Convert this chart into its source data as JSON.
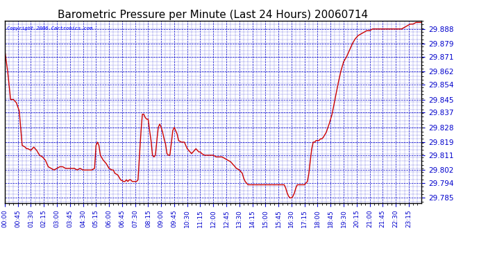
{
  "title": "Barometric Pressure per Minute (Last 24 Hours) 20060714",
  "copyright": "Copyright 2006 Cartronics.com",
  "line_color": "#cc0000",
  "bg_color": "#ffffff",
  "plot_bg_color": "#ffffff",
  "grid_color": "#0000cc",
  "text_color": "#0000cc",
  "yticks": [
    29.785,
    29.794,
    29.802,
    29.811,
    29.819,
    29.828,
    29.837,
    29.845,
    29.854,
    29.862,
    29.871,
    29.879,
    29.888
  ],
  "ylim": [
    29.782,
    29.893
  ],
  "xtick_labels": [
    "00:00",
    "00:45",
    "01:30",
    "02:15",
    "03:00",
    "03:45",
    "04:30",
    "05:15",
    "06:00",
    "06:45",
    "07:30",
    "08:15",
    "09:00",
    "09:45",
    "10:30",
    "11:15",
    "12:00",
    "12:45",
    "13:30",
    "14:15",
    "15:00",
    "15:45",
    "16:30",
    "17:15",
    "18:00",
    "18:45",
    "19:30",
    "20:15",
    "21:00",
    "21:45",
    "22:30",
    "23:15"
  ],
  "title_fontsize": 11,
  "label_fontsize": 6.5,
  "ylabel_fontsize": 7.5,
  "keypoints": [
    [
      0,
      29.875
    ],
    [
      10,
      29.862
    ],
    [
      20,
      29.845
    ],
    [
      30,
      29.845
    ],
    [
      40,
      29.843
    ],
    [
      50,
      29.838
    ],
    [
      60,
      29.817
    ],
    [
      70,
      29.816
    ],
    [
      75,
      29.815
    ],
    [
      80,
      29.815
    ],
    [
      90,
      29.814
    ],
    [
      100,
      29.816
    ],
    [
      110,
      29.814
    ],
    [
      120,
      29.811
    ],
    [
      130,
      29.81
    ],
    [
      140,
      29.808
    ],
    [
      150,
      29.804
    ],
    [
      160,
      29.803
    ],
    [
      170,
      29.802
    ],
    [
      180,
      29.803
    ],
    [
      190,
      29.804
    ],
    [
      200,
      29.804
    ],
    [
      210,
      29.803
    ],
    [
      220,
      29.803
    ],
    [
      230,
      29.803
    ],
    [
      240,
      29.803
    ],
    [
      250,
      29.802
    ],
    [
      260,
      29.803
    ],
    [
      270,
      29.802
    ],
    [
      280,
      29.802
    ],
    [
      290,
      29.802
    ],
    [
      300,
      29.802
    ],
    [
      310,
      29.803
    ],
    [
      315,
      29.817
    ],
    [
      320,
      29.819
    ],
    [
      325,
      29.817
    ],
    [
      330,
      29.811
    ],
    [
      340,
      29.808
    ],
    [
      350,
      29.806
    ],
    [
      360,
      29.803
    ],
    [
      370,
      29.802
    ],
    [
      375,
      29.802
    ],
    [
      380,
      29.8
    ],
    [
      390,
      29.799
    ],
    [
      400,
      29.796
    ],
    [
      410,
      29.795
    ],
    [
      415,
      29.795
    ],
    [
      420,
      29.796
    ],
    [
      425,
      29.795
    ],
    [
      430,
      29.796
    ],
    [
      435,
      29.796
    ],
    [
      440,
      29.795
    ],
    [
      445,
      29.795
    ],
    [
      450,
      29.795
    ],
    [
      455,
      29.795
    ],
    [
      460,
      29.796
    ],
    [
      465,
      29.81
    ],
    [
      470,
      29.825
    ],
    [
      475,
      29.836
    ],
    [
      480,
      29.836
    ],
    [
      485,
      29.834
    ],
    [
      490,
      29.833
    ],
    [
      495,
      29.833
    ],
    [
      500,
      29.826
    ],
    [
      505,
      29.82
    ],
    [
      510,
      29.811
    ],
    [
      515,
      29.81
    ],
    [
      520,
      29.811
    ],
    [
      525,
      29.82
    ],
    [
      530,
      29.828
    ],
    [
      535,
      29.83
    ],
    [
      540,
      29.828
    ],
    [
      545,
      29.825
    ],
    [
      550,
      29.821
    ],
    [
      555,
      29.818
    ],
    [
      560,
      29.812
    ],
    [
      565,
      29.811
    ],
    [
      570,
      29.811
    ],
    [
      575,
      29.818
    ],
    [
      580,
      29.826
    ],
    [
      585,
      29.828
    ],
    [
      590,
      29.826
    ],
    [
      595,
      29.824
    ],
    [
      600,
      29.82
    ],
    [
      610,
      29.819
    ],
    [
      615,
      29.819
    ],
    [
      620,
      29.819
    ],
    [
      625,
      29.817
    ],
    [
      630,
      29.815
    ],
    [
      635,
      29.814
    ],
    [
      640,
      29.813
    ],
    [
      645,
      29.812
    ],
    [
      650,
      29.813
    ],
    [
      655,
      29.814
    ],
    [
      660,
      29.815
    ],
    [
      665,
      29.814
    ],
    [
      670,
      29.813
    ],
    [
      675,
      29.813
    ],
    [
      680,
      29.812
    ],
    [
      690,
      29.811
    ],
    [
      700,
      29.811
    ],
    [
      710,
      29.811
    ],
    [
      720,
      29.811
    ],
    [
      730,
      29.81
    ],
    [
      740,
      29.81
    ],
    [
      750,
      29.81
    ],
    [
      760,
      29.809
    ],
    [
      770,
      29.808
    ],
    [
      780,
      29.807
    ],
    [
      790,
      29.805
    ],
    [
      800,
      29.803
    ],
    [
      810,
      29.802
    ],
    [
      820,
      29.8
    ],
    [
      825,
      29.797
    ],
    [
      830,
      29.795
    ],
    [
      835,
      29.794
    ],
    [
      840,
      29.793
    ],
    [
      845,
      29.793
    ],
    [
      850,
      29.793
    ],
    [
      855,
      29.793
    ],
    [
      860,
      29.793
    ],
    [
      870,
      29.793
    ],
    [
      880,
      29.793
    ],
    [
      890,
      29.793
    ],
    [
      900,
      29.793
    ],
    [
      910,
      29.793
    ],
    [
      920,
      29.793
    ],
    [
      930,
      29.793
    ],
    [
      940,
      29.793
    ],
    [
      950,
      29.793
    ],
    [
      960,
      29.793
    ],
    [
      965,
      29.793
    ],
    [
      970,
      29.791
    ],
    [
      975,
      29.788
    ],
    [
      980,
      29.786
    ],
    [
      985,
      29.785
    ],
    [
      990,
      29.785
    ],
    [
      995,
      29.786
    ],
    [
      1000,
      29.788
    ],
    [
      1005,
      29.791
    ],
    [
      1010,
      29.793
    ],
    [
      1015,
      29.793
    ],
    [
      1020,
      29.793
    ],
    [
      1025,
      29.793
    ],
    [
      1030,
      29.793
    ],
    [
      1035,
      29.793
    ],
    [
      1040,
      29.794
    ],
    [
      1045,
      29.795
    ],
    [
      1050,
      29.8
    ],
    [
      1055,
      29.808
    ],
    [
      1060,
      29.815
    ],
    [
      1065,
      29.819
    ],
    [
      1070,
      29.819
    ],
    [
      1075,
      29.82
    ],
    [
      1080,
      29.82
    ],
    [
      1085,
      29.82
    ],
    [
      1090,
      29.821
    ],
    [
      1095,
      29.821
    ],
    [
      1100,
      29.822
    ],
    [
      1110,
      29.825
    ],
    [
      1120,
      29.83
    ],
    [
      1130,
      29.836
    ],
    [
      1140,
      29.845
    ],
    [
      1150,
      29.854
    ],
    [
      1160,
      29.862
    ],
    [
      1170,
      29.868
    ],
    [
      1180,
      29.871
    ],
    [
      1190,
      29.875
    ],
    [
      1200,
      29.879
    ],
    [
      1210,
      29.882
    ],
    [
      1220,
      29.884
    ],
    [
      1230,
      29.885
    ],
    [
      1240,
      29.886
    ],
    [
      1250,
      29.887
    ],
    [
      1260,
      29.887
    ],
    [
      1270,
      29.888
    ],
    [
      1280,
      29.888
    ],
    [
      1290,
      29.888
    ],
    [
      1300,
      29.888
    ],
    [
      1310,
      29.888
    ],
    [
      1320,
      29.888
    ],
    [
      1330,
      29.888
    ],
    [
      1340,
      29.888
    ],
    [
      1350,
      29.888
    ],
    [
      1360,
      29.888
    ],
    [
      1370,
      29.888
    ],
    [
      1380,
      29.889
    ],
    [
      1390,
      29.89
    ],
    [
      1400,
      29.891
    ],
    [
      1410,
      29.891
    ],
    [
      1420,
      29.892
    ],
    [
      1430,
      29.892
    ],
    [
      1439,
      29.892
    ]
  ]
}
